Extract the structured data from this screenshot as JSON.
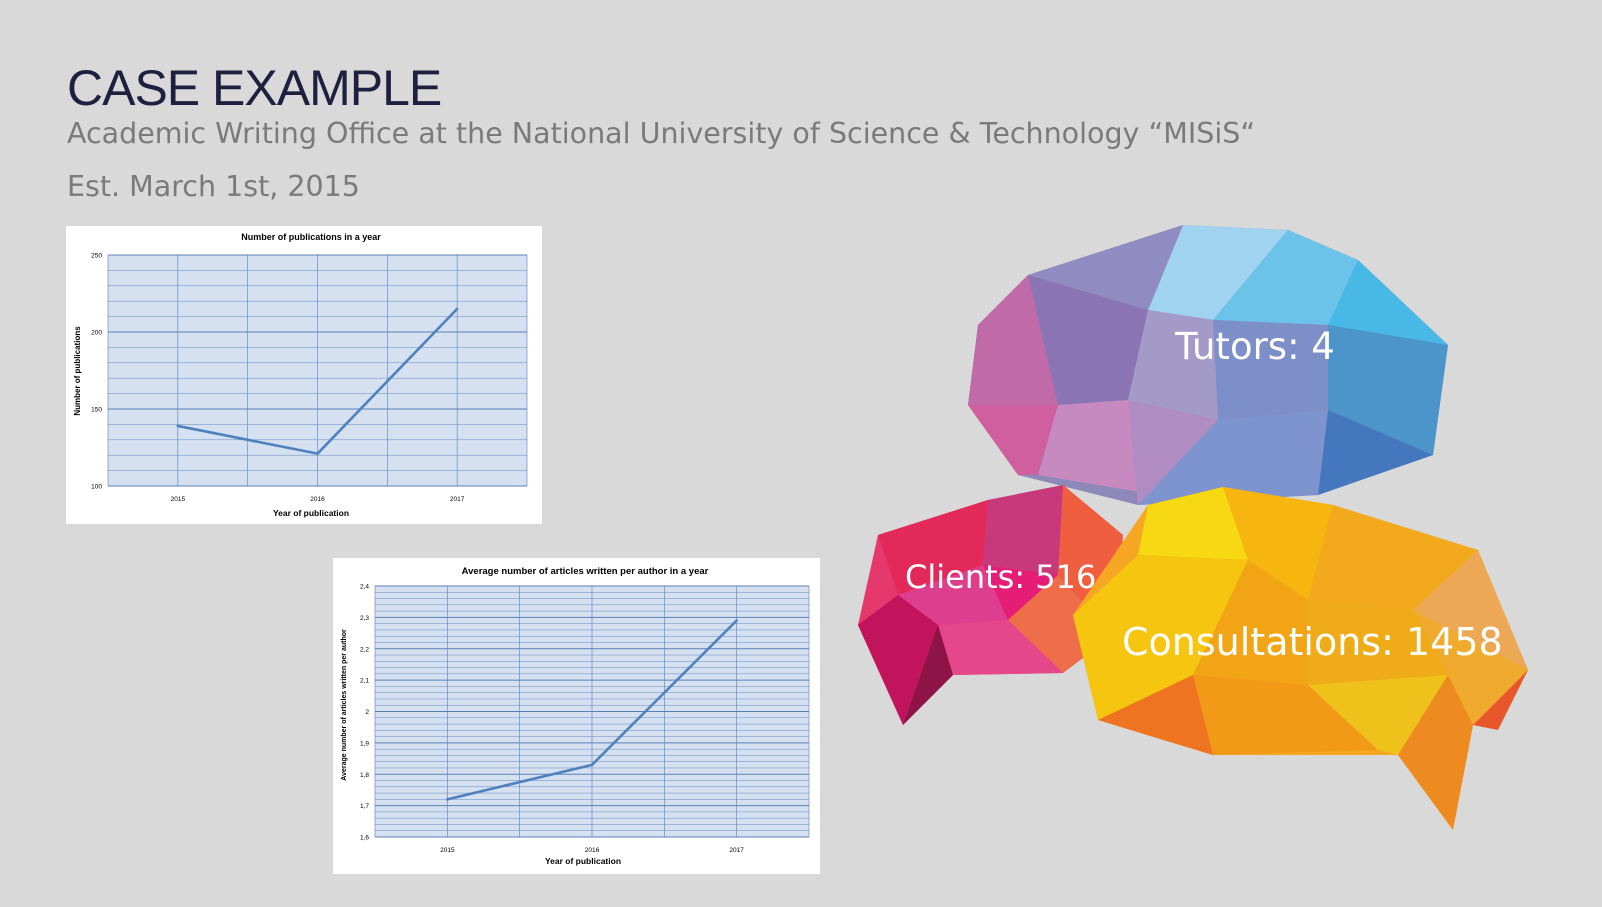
{
  "slide": {
    "title": "CASE EXAMPLE",
    "subtitle": "Academic Writing Office at the National University of Science & Technology “MISiS“",
    "established": "Est. March 1st, 2015"
  },
  "stats": {
    "tutors": "Tutors: 4",
    "clients": "Clients: 516",
    "consultations": "Consultations: 1458"
  },
  "chart_data": [
    {
      "type": "line",
      "title": "Number of publications in a year",
      "xlabel": "Year of publication",
      "ylabel": "Number of publications",
      "x": [
        "2015",
        "2016",
        "2017"
      ],
      "series": [
        {
          "values": [
            139,
            121,
            215
          ]
        }
      ],
      "ylim": [
        100,
        250
      ],
      "yticks": [
        "100",
        "150",
        "200",
        "250"
      ],
      "grid": true,
      "plot_bg": "#d5e0f1",
      "line_color": "#4f81bd"
    },
    {
      "type": "line",
      "title": "Average number of articles written per author in a year",
      "xlabel": "Year of publication",
      "ylabel": "Average number of articles written per author",
      "x": [
        "2015",
        "2016",
        "2017"
      ],
      "series": [
        {
          "values": [
            1.72,
            1.83,
            2.29
          ]
        }
      ],
      "ylim": [
        1.6,
        2.4
      ],
      "yticks": [
        "1,6",
        "1,7",
        "1,8",
        "1,9",
        "2",
        "2,1",
        "2,2",
        "2,3",
        "2,4"
      ],
      "grid": true,
      "plot_bg": "#d5e0f1",
      "line_color": "#4f81bd"
    }
  ]
}
